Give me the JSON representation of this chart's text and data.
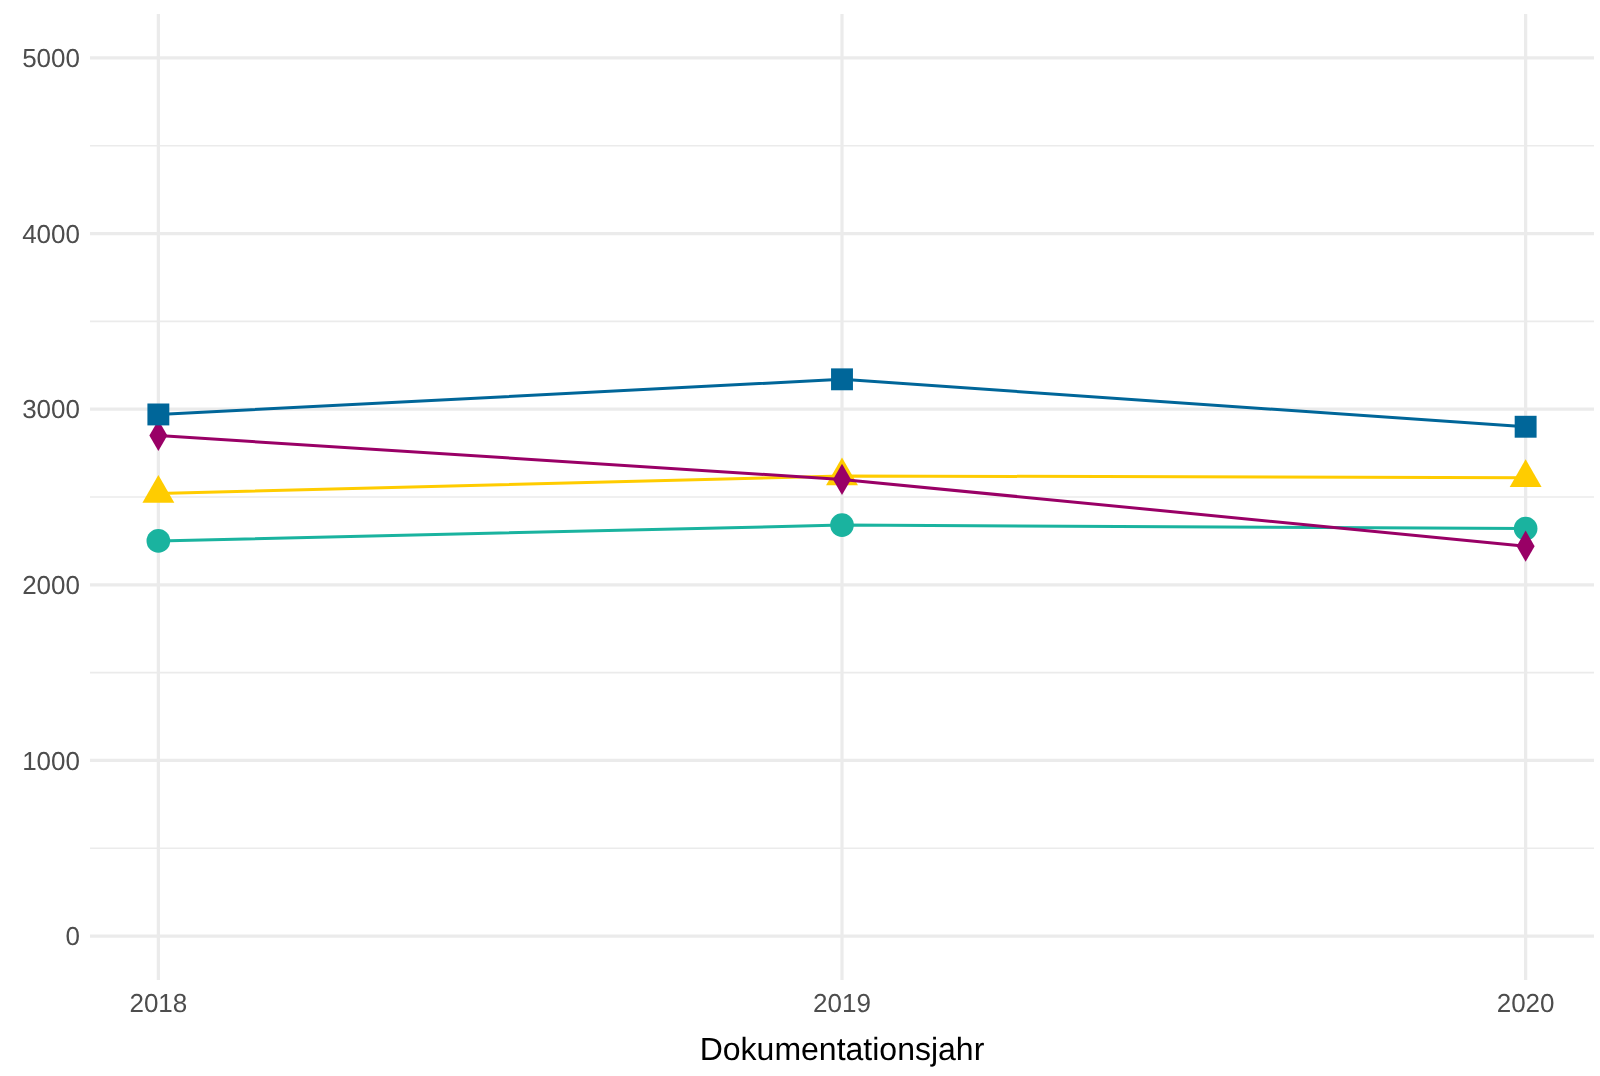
{
  "chart_data": {
    "type": "line",
    "xlabel": "Dokumentationsjahr",
    "x": [
      2018,
      2019,
      2020
    ],
    "xlim": [
      2017.9,
      2020.1
    ],
    "xticks": [
      2018,
      2019,
      2020
    ],
    "ylim": [
      -250,
      5250
    ],
    "yticks": [
      0,
      {
        "value": 500,
        "label": null
      },
      1000,
      {
        "value": 1500,
        "label": null
      },
      2000,
      {
        "value": 2500,
        "label": null
      },
      3000,
      {
        "value": 3500,
        "label": null
      },
      4000,
      {
        "value": 4500,
        "label": null
      },
      5000
    ],
    "grid": true,
    "line_style": "solid",
    "series": [
      {
        "color": "#006699",
        "marker": "square",
        "values": [
          2970,
          3170,
          2900
        ]
      },
      {
        "color": "#990066",
        "marker": "diamond",
        "values": [
          2850,
          2600,
          2220
        ]
      },
      {
        "color": "#ffcc00",
        "marker": "triangle",
        "values": [
          2520,
          2620,
          2610
        ]
      },
      {
        "color": "#1ab39f",
        "marker": "circle",
        "values": [
          2250,
          2340,
          2320
        ]
      }
    ]
  }
}
